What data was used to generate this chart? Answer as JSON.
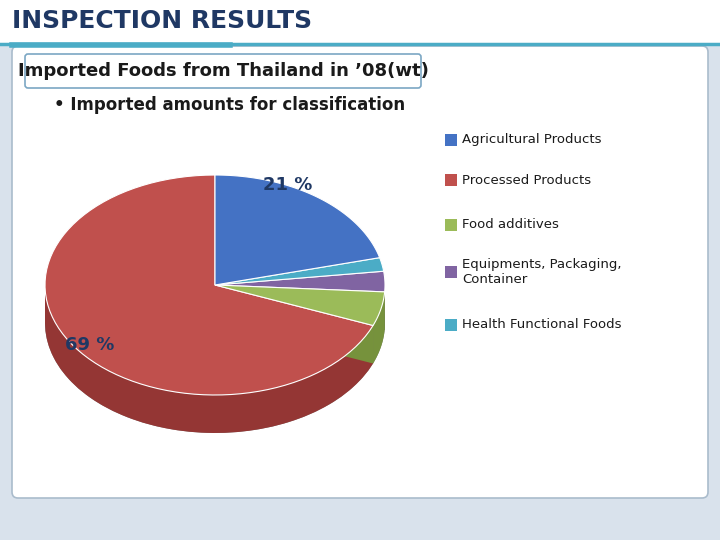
{
  "title": "INSPECTION RESULTS",
  "subtitle": "Imported Foods from Thailand in ’08(wt)",
  "bullet": "• Imported amounts for classification",
  "labels": [
    "Agricultural Products",
    "Processed Products",
    "Food additives",
    "Equipments, Packaging,\nContainer",
    "Health Functional Foods"
  ],
  "values": [
    21,
    69,
    5,
    3,
    2
  ],
  "colors": [
    "#4472C4",
    "#C0504D",
    "#9BBB59",
    "#8064A2",
    "#4BACC6"
  ],
  "colors_dark": [
    "#2F528F",
    "#943634",
    "#76923C",
    "#60497A",
    "#31849B"
  ],
  "outer_bg": "#D9E2EC",
  "title_color": "#1F3864",
  "title_fontsize": 18,
  "subtitle_fontsize": 13,
  "bullet_fontsize": 12,
  "pct_color": "#1F3864",
  "legend_fontsize": 9.5
}
